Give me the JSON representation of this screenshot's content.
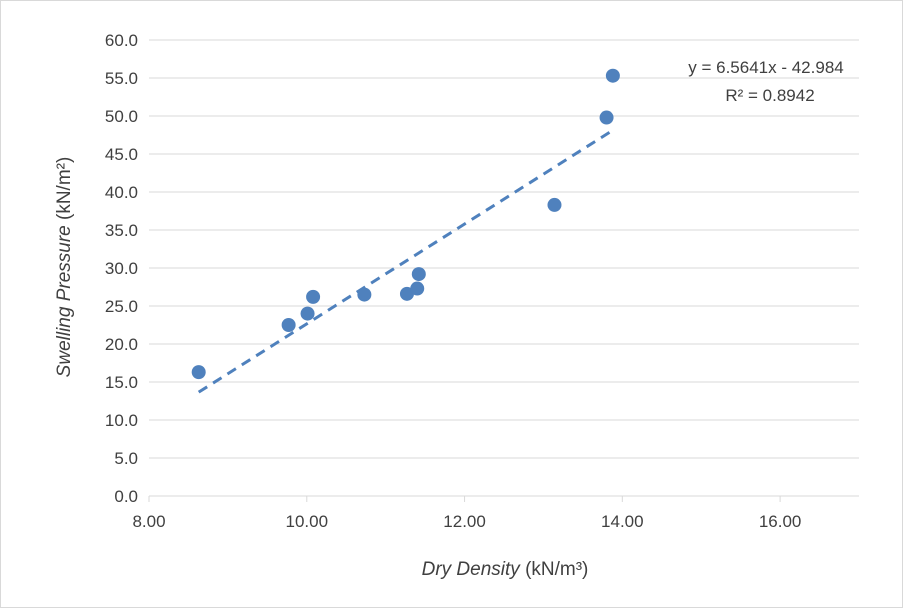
{
  "chart_data": {
    "type": "scatter",
    "x": [
      8.63,
      9.77,
      10.01,
      10.08,
      10.73,
      11.27,
      11.4,
      11.42,
      13.14,
      13.8,
      13.88
    ],
    "y": [
      16.3,
      22.5,
      24.0,
      26.2,
      26.5,
      26.6,
      27.3,
      29.2,
      38.3,
      49.8,
      55.3
    ],
    "xlabel_italic": "Dry Density",
    "xlabel_unit": " (kN/m³)",
    "ylabel_italic": "Swelling Pressure",
    "ylabel_unit": " (kN/m²)",
    "xlim": [
      8,
      17
    ],
    "ylim": [
      0,
      60
    ],
    "x_ticks": [
      "8.00",
      "10.00",
      "12.00",
      "14.00",
      "16.00"
    ],
    "x_tick_values": [
      8,
      10,
      12,
      14,
      16
    ],
    "y_ticks": [
      "0.0",
      "5.0",
      "10.0",
      "15.0",
      "20.0",
      "25.0",
      "30.0",
      "35.0",
      "40.0",
      "45.0",
      "50.0",
      "55.0",
      "60.0"
    ],
    "y_tick_values": [
      0,
      5,
      10,
      15,
      20,
      25,
      30,
      35,
      40,
      45,
      50,
      55,
      60
    ],
    "grid": true,
    "trendline": {
      "type": "linear",
      "slope": 6.5641,
      "intercept": -42.984,
      "x_range": [
        8.63,
        13.88
      ],
      "equation": "y = 6.5641x - 42.984",
      "r_squared": "R² = 0.8942"
    },
    "colors": {
      "marker": "#4f81bd",
      "trendline": "#4f81bd",
      "grid": "#d9d9d9",
      "text": "#404040"
    }
  }
}
